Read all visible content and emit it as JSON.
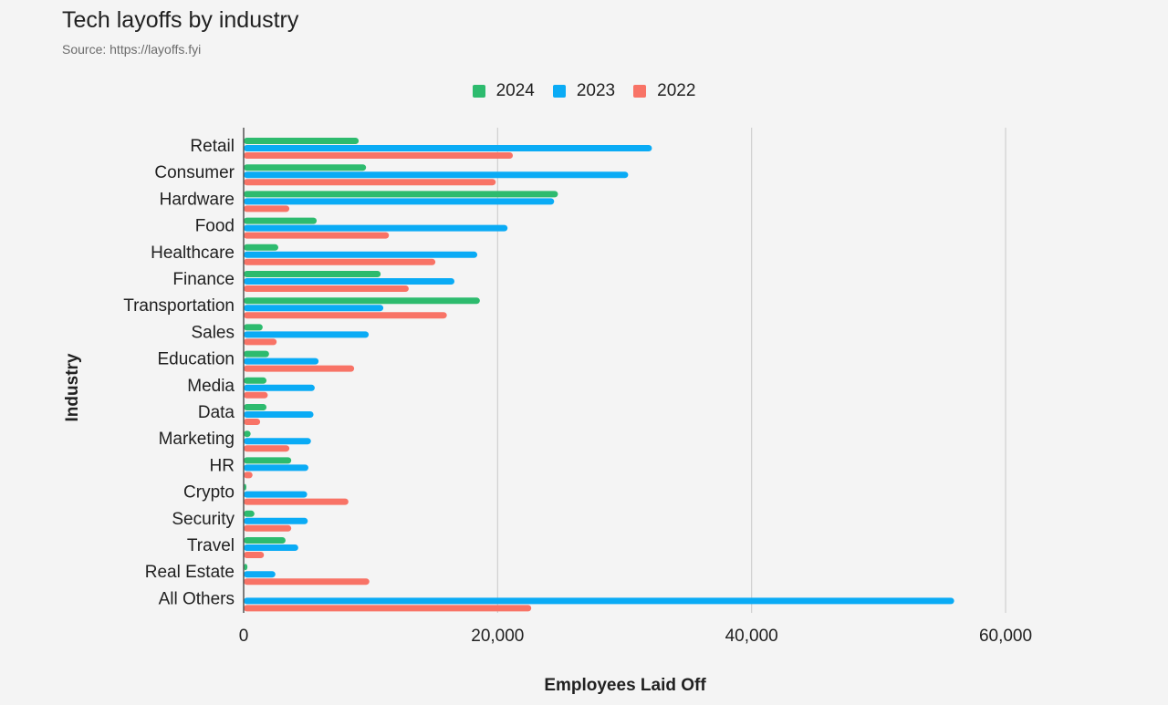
{
  "chart_data": {
    "type": "bar",
    "orientation": "horizontal",
    "title": "Tech layoffs by industry",
    "subtitle": "Source: https://layoffs.fyi",
    "xlabel": "Employees Laid Off",
    "ylabel": "Industry",
    "xlim": [
      0,
      68000
    ],
    "xticks": [
      0,
      20000,
      40000,
      60000
    ],
    "xtick_labels": [
      "0",
      "20,000",
      "40,000",
      "60,000"
    ],
    "grid": true,
    "legend_position": "top-center",
    "categories": [
      "Retail",
      "Consumer",
      "Hardware",
      "Food",
      "Healthcare",
      "Finance",
      "Transportation",
      "Sales",
      "Education",
      "Media",
      "Data",
      "Marketing",
      "HR",
      "Crypto",
      "Security",
      "Travel",
      "Real Estate",
      "All Others"
    ],
    "series": [
      {
        "name": "2024",
        "color": "#2dbb6e",
        "values": [
          9060,
          9640,
          24750,
          5750,
          2730,
          10790,
          18600,
          1500,
          2000,
          1800,
          1800,
          550,
          3750,
          150,
          850,
          3300,
          300,
          0
        ]
      },
      {
        "name": "2023",
        "color": "#0aabf5",
        "values": [
          32150,
          30280,
          24450,
          20780,
          18400,
          16600,
          11000,
          9850,
          5900,
          5600,
          5500,
          5300,
          5100,
          5000,
          5050,
          4300,
          2500,
          55950
        ]
      },
      {
        "name": "2022",
        "color": "#f87366",
        "values": [
          21200,
          19850,
          3600,
          11440,
          15100,
          13000,
          16000,
          2600,
          8700,
          1900,
          1300,
          3600,
          700,
          8250,
          3750,
          1600,
          9900,
          22650
        ]
      }
    ]
  }
}
